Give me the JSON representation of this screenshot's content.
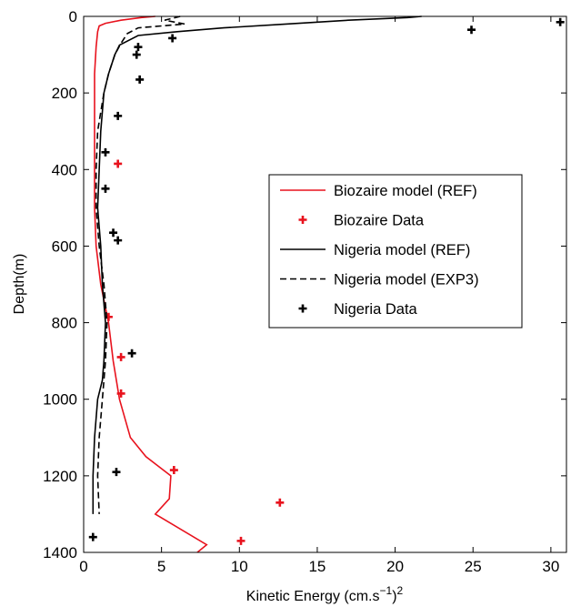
{
  "chart_data": {
    "type": "line",
    "xlabel": "Kinetic Energy (cm.s",
    "xlabel_sup1": "−1",
    "xlabel_close": ")",
    "xlabel_sup2": "2",
    "ylabel": "Depth(m)",
    "xlim": [
      0,
      31
    ],
    "ylim": [
      1400,
      0
    ],
    "x_ticks": [
      0,
      5,
      10,
      15,
      20,
      25,
      30
    ],
    "y_ticks": [
      0,
      200,
      400,
      600,
      800,
      1000,
      1200,
      1400
    ],
    "x_tick_labels": [
      "0",
      "5",
      "10",
      "15",
      "20",
      "25",
      "30"
    ],
    "y_tick_labels": [
      "0",
      "200",
      "400",
      "600",
      "800",
      "1000",
      "1200",
      "1400"
    ],
    "legend_position": "right",
    "legend": [
      "Biozaire model (REF)",
      "Biozaire Data",
      "Nigeria model (REF)",
      "Nigeria model (EXP3)",
      "Nigeria Data"
    ],
    "series": [
      {
        "name": "Biozaire model (REF)",
        "kind": "line",
        "color": "#e8121d",
        "dash": "solid",
        "points": [
          [
            4.6,
            0
          ],
          [
            3.7,
            3
          ],
          [
            2.4,
            10
          ],
          [
            1.4,
            18
          ],
          [
            1.0,
            25
          ],
          [
            0.9,
            40
          ],
          [
            0.8,
            80
          ],
          [
            0.7,
            150
          ],
          [
            0.7,
            200
          ],
          [
            0.7,
            300
          ],
          [
            0.7,
            400
          ],
          [
            0.7,
            500
          ],
          [
            0.8,
            600
          ],
          [
            1.1,
            700
          ],
          [
            1.6,
            800
          ],
          [
            1.9,
            900
          ],
          [
            2.3,
            1000
          ],
          [
            3.0,
            1100
          ],
          [
            4.0,
            1150
          ],
          [
            5.6,
            1200
          ],
          [
            5.5,
            1260
          ],
          [
            4.6,
            1300
          ],
          [
            7.9,
            1380
          ],
          [
            7.3,
            1400
          ]
        ]
      },
      {
        "name": "Biozaire Data",
        "kind": "marker",
        "color": "#e8121d",
        "points": [
          [
            2.2,
            385
          ],
          [
            1.6,
            785
          ],
          [
            2.4,
            890
          ],
          [
            2.4,
            985
          ],
          [
            5.8,
            1185
          ],
          [
            12.6,
            1270
          ],
          [
            10.1,
            1370
          ]
        ]
      },
      {
        "name": "Nigeria model (REF)",
        "kind": "line",
        "color": "#000000",
        "dash": "solid",
        "points": [
          [
            21.7,
            0
          ],
          [
            20.8,
            3
          ],
          [
            17,
            10
          ],
          [
            13,
            20
          ],
          [
            9,
            30
          ],
          [
            6,
            40
          ],
          [
            3.5,
            50
          ],
          [
            2.3,
            75
          ],
          [
            2.0,
            100
          ],
          [
            1.6,
            150
          ],
          [
            1.3,
            200
          ],
          [
            1.1,
            300
          ],
          [
            1.0,
            400
          ],
          [
            0.9,
            500
          ],
          [
            1.1,
            600
          ],
          [
            1.2,
            700
          ],
          [
            1.4,
            800
          ],
          [
            1.3,
            900
          ],
          [
            1.2,
            950
          ],
          [
            0.9,
            1000
          ],
          [
            0.7,
            1100
          ],
          [
            0.6,
            1200
          ],
          [
            0.6,
            1300
          ]
        ]
      },
      {
        "name": "Nigeria model (EXP3)",
        "kind": "line",
        "color": "#000000",
        "dash": "dashed",
        "points": [
          [
            6.2,
            0
          ],
          [
            5.2,
            10
          ],
          [
            6.5,
            20
          ],
          [
            3.5,
            30
          ],
          [
            2.8,
            45
          ],
          [
            2.4,
            70
          ],
          [
            2.0,
            100
          ],
          [
            1.6,
            150
          ],
          [
            1.3,
            200
          ],
          [
            1.1,
            250
          ],
          [
            0.9,
            300
          ],
          [
            0.8,
            400
          ],
          [
            0.8,
            500
          ],
          [
            1.0,
            600
          ],
          [
            1.3,
            700
          ],
          [
            1.5,
            800
          ],
          [
            1.4,
            900
          ],
          [
            1.2,
            1000
          ],
          [
            1.0,
            1100
          ],
          [
            0.9,
            1200
          ],
          [
            1.0,
            1300
          ]
        ]
      },
      {
        "name": "Nigeria Data",
        "kind": "marker",
        "color": "#000000",
        "points": [
          [
            30.6,
            15
          ],
          [
            24.9,
            35
          ],
          [
            5.7,
            57
          ],
          [
            3.5,
            80
          ],
          [
            3.4,
            100
          ],
          [
            3.6,
            165
          ],
          [
            2.2,
            260
          ],
          [
            1.4,
            355
          ],
          [
            1.4,
            450
          ],
          [
            1.9,
            565
          ],
          [
            2.2,
            585
          ],
          [
            3.1,
            880
          ],
          [
            2.1,
            1190
          ],
          [
            0.6,
            1360
          ]
        ]
      }
    ]
  }
}
